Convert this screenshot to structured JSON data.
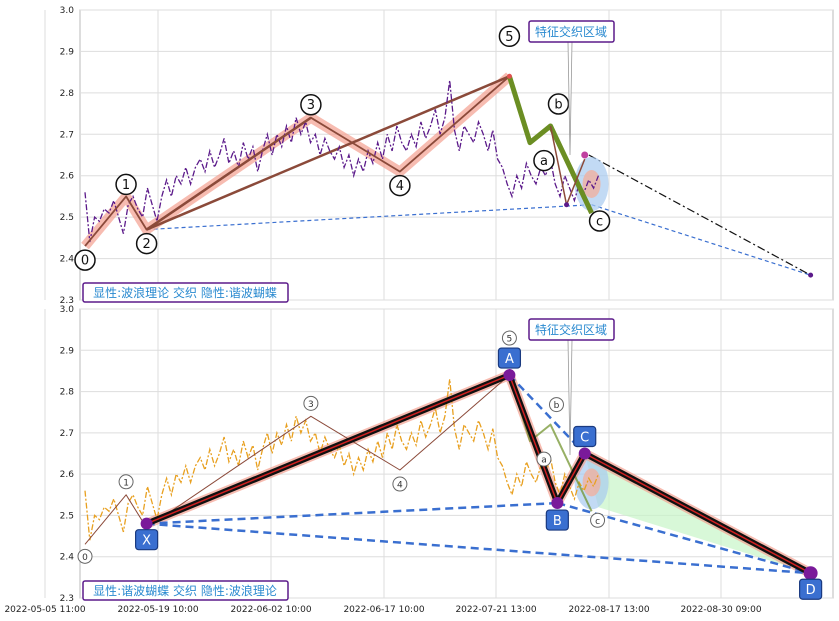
{
  "chart_data": {
    "type": "line",
    "x_tick_labels": [
      "2022-05-05 11:00",
      "2022-05-19 10:00",
      "2022-06-02 10:00",
      "2022-06-17 10:00",
      "2022-07-21 13:00",
      "2022-08-17 13:00",
      "2022-08-30 09:00"
    ],
    "y_ticks": [
      "2.3",
      "2.4",
      "2.5",
      "2.6",
      "2.7",
      "2.8",
      "2.9",
      "3.0"
    ],
    "ylim": [
      2.3,
      3.0
    ],
    "grid": true,
    "colors": {
      "price_top": "#5b1a8a",
      "price_bottom": "#e8a020",
      "wave": "#8b4a3a",
      "wave_highlight": "#f4a090",
      "abc_green": "#6b8e23",
      "xabcd_black": "#111111",
      "xabcd_red": "#d02020",
      "dashed_blue": "#3a6fd0",
      "badge_border": "#5b1a8a",
      "badge_text": "#2a8ad0",
      "point_box": "#3a6fd0"
    },
    "panels": [
      {
        "label": "显性:波浪理论 交织 隐性:谐波蝴蝶",
        "zone_label": "特征交织区域",
        "wave_labels": [
          "0",
          "1",
          "2",
          "3",
          "4",
          "5",
          "a",
          "b",
          "c"
        ],
        "wave_points": [
          {
            "x": 0.0,
            "y": 2.43
          },
          {
            "x": 3.0,
            "y": 2.55
          },
          {
            "x": 4.5,
            "y": 2.47
          },
          {
            "x": 16.5,
            "y": 2.74
          },
          {
            "x": 23.0,
            "y": 2.61
          },
          {
            "x": 31.0,
            "y": 2.84
          },
          {
            "x": 32.5,
            "y": 2.68
          },
          {
            "x": 34.0,
            "y": 2.72
          },
          {
            "x": 37.0,
            "y": 2.51
          }
        ],
        "projection_end": {
          "x": 53.0,
          "y": 2.36
        }
      },
      {
        "label": "显性:谐波蝴蝶 交织 隐性:波浪理论",
        "zone_label": "特征交织区域",
        "point_labels": [
          "X",
          "A",
          "B",
          "C",
          "D"
        ],
        "harmonic_points": [
          {
            "x": 4.5,
            "y": 2.48
          },
          {
            "x": 31.0,
            "y": 2.84
          },
          {
            "x": 34.5,
            "y": 2.53
          },
          {
            "x": 36.5,
            "y": 2.65
          },
          {
            "x": 53.0,
            "y": 2.36
          }
        ]
      }
    ],
    "price_series": [
      2.56,
      2.44,
      2.5,
      2.49,
      2.52,
      2.51,
      2.54,
      2.5,
      2.46,
      2.53,
      2.55,
      2.52,
      2.5,
      2.57,
      2.53,
      2.49,
      2.55,
      2.59,
      2.55,
      2.6,
      2.58,
      2.62,
      2.58,
      2.62,
      2.64,
      2.61,
      2.66,
      2.62,
      2.65,
      2.69,
      2.63,
      2.66,
      2.62,
      2.68,
      2.64,
      2.67,
      2.61,
      2.66,
      2.7,
      2.65,
      2.7,
      2.67,
      2.72,
      2.68,
      2.74,
      2.7,
      2.73,
      2.68,
      2.7,
      2.65,
      2.69,
      2.66,
      2.64,
      2.67,
      2.62,
      2.65,
      2.6,
      2.64,
      2.61,
      2.66,
      2.63,
      2.68,
      2.64,
      2.7,
      2.66,
      2.72,
      2.68,
      2.66,
      2.7,
      2.67,
      2.73,
      2.69,
      2.72,
      2.76,
      2.7,
      2.74,
      2.83,
      2.71,
      2.66,
      2.72,
      2.7,
      2.68,
      2.73,
      2.7,
      2.66,
      2.71,
      2.64,
      2.62,
      2.58,
      2.55,
      2.6,
      2.57,
      2.63,
      2.6,
      2.58,
      2.62,
      2.6,
      2.64,
      2.58,
      2.55,
      2.6,
      2.57,
      2.54,
      2.58,
      2.56,
      2.59,
      2.57,
      2.6
    ]
  }
}
